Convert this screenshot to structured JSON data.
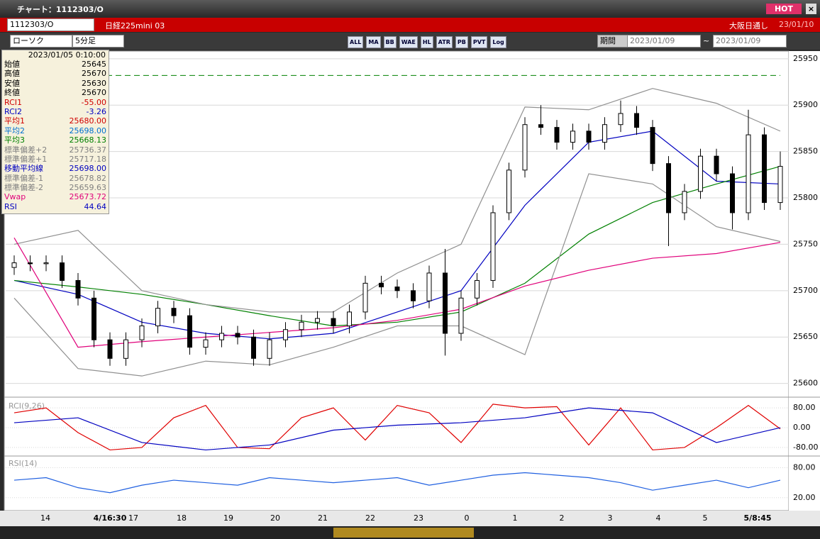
{
  "window": {
    "title": "チャート：1112303/O",
    "hot": "HOT"
  },
  "header": {
    "symbol": "1112303/O",
    "name": "日経225mini 03",
    "session": "大阪日通し",
    "date": "23/01/10"
  },
  "toolbar": {
    "chart_style": "ローソク",
    "interval": "5分足",
    "buttons": [
      "ALL",
      "MA",
      "BB",
      "WAE",
      "HL",
      "ATR",
      "PB",
      "PVT",
      "Log"
    ],
    "period_label": "期間",
    "from": "2023/01/09",
    "tilde": "~",
    "to": "2023/01/09"
  },
  "info_panel": {
    "datetime": "2023/01/05 0:10:00",
    "rows": [
      {
        "label": "始値",
        "value": "25645",
        "color": "#000000"
      },
      {
        "label": "高値",
        "value": "25670",
        "color": "#000000"
      },
      {
        "label": "安値",
        "value": "25630",
        "color": "#000000"
      },
      {
        "label": "終値",
        "value": "25670",
        "color": "#000000"
      },
      {
        "label": "RCI1",
        "value": "-55.00",
        "color": "#d00000"
      },
      {
        "label": "RCI2",
        "value": "-3.26",
        "color": "#0000c0"
      },
      {
        "label": "平均1",
        "value": "25680.00",
        "color": "#d00000"
      },
      {
        "label": "平均2",
        "value": "25698.00",
        "color": "#0070d0"
      },
      {
        "label": "平均3",
        "value": "25668.13",
        "color": "#008000"
      },
      {
        "label": "標準偏差+2",
        "value": "25736.37",
        "color": "#808080"
      },
      {
        "label": "標準偏差+1",
        "value": "25717.18",
        "color": "#808080"
      },
      {
        "label": "移動平均線",
        "value": "25698.00",
        "color": "#0000c0"
      },
      {
        "label": "標準偏差-1",
        "value": "25678.82",
        "color": "#808080"
      },
      {
        "label": "標準偏差-2",
        "value": "25659.63",
        "color": "#808080"
      },
      {
        "label": "Vwap",
        "value": "25673.72",
        "color": "#e0007a"
      },
      {
        "label": "RSI",
        "value": "44.64",
        "color": "#0000c0"
      }
    ]
  },
  "chart_data": [
    {
      "type": "candlestick",
      "ylim": [
        25589,
        25956
      ],
      "yticks": [
        25600,
        25650,
        25700,
        25750,
        25800,
        25850,
        25900,
        25950
      ],
      "grid": true,
      "up_color": "#ffffff",
      "down_color": "#000000",
      "reference_line": 25932,
      "reference_color": "#008000",
      "x_labels": [
        "14",
        "4/16:30",
        "17",
        "18",
        "19",
        "20",
        "21",
        "22",
        "23",
        "0",
        "1",
        "2",
        "3",
        "4",
        "5",
        "5/8:45"
      ],
      "open": [
        25725,
        25730,
        25729,
        25730,
        25711,
        25692,
        25647,
        25627,
        25647,
        25662,
        25681,
        25673,
        25639,
        25647,
        25654,
        25650,
        25627,
        25647,
        25658,
        25666,
        25670,
        25662,
        25677,
        25708,
        25704,
        25700,
        25689,
        25719,
        25654,
        25692,
        25711,
        25784,
        25830,
        25879,
        25876,
        25860,
        25872,
        25860,
        25879,
        25891,
        25876,
        25837,
        25784,
        25807,
        25845,
        25826,
        25784,
        25868,
        25795
      ],
      "high": [
        25738,
        25738,
        25738,
        25738,
        25719,
        25700,
        25655,
        25655,
        25670,
        25689,
        25689,
        25681,
        25655,
        25662,
        25662,
        25658,
        25655,
        25666,
        25674,
        25678,
        25678,
        25685,
        25716,
        25716,
        25712,
        25708,
        25727,
        25745,
        25700,
        25719,
        25792,
        25838,
        25887,
        25900,
        25884,
        25880,
        25880,
        25887,
        25905,
        25899,
        25884,
        25845,
        25815,
        25853,
        25853,
        25834,
        25895,
        25876,
        25850
      ],
      "low": [
        25717,
        25721,
        25721,
        25703,
        25684,
        25639,
        25619,
        25619,
        25639,
        25654,
        25665,
        25631,
        25631,
        25639,
        25642,
        25619,
        25619,
        25639,
        25650,
        25658,
        25654,
        25654,
        25669,
        25696,
        25692,
        25681,
        25681,
        25630,
        25646,
        25684,
        25703,
        25776,
        25822,
        25868,
        25852,
        25852,
        25852,
        25852,
        25871,
        25868,
        25829,
        25748,
        25776,
        25799,
        25818,
        25766,
        25776,
        25787,
        25787
      ],
      "close": [
        25730,
        25729,
        25730,
        25711,
        25692,
        25647,
        25627,
        25647,
        25662,
        25681,
        25673,
        25639,
        25647,
        25654,
        25650,
        25627,
        25647,
        25658,
        25666,
        25670,
        25662,
        25677,
        25708,
        25704,
        25700,
        25689,
        25719,
        25654,
        25692,
        25711,
        25784,
        25830,
        25879,
        25876,
        25860,
        25872,
        25860,
        25879,
        25891,
        25876,
        25837,
        25784,
        25807,
        25845,
        25826,
        25784,
        25868,
        25795,
        25834
      ],
      "series": [
        {
          "name": "平均2",
          "color": "#0000c0",
          "x": [
            0,
            4,
            8,
            12,
            16,
            20,
            24,
            28,
            32,
            36,
            40,
            44,
            48
          ],
          "values": [
            25711,
            25696,
            25666,
            25654,
            25648,
            25654,
            25677,
            25700,
            25792,
            25860,
            25872,
            25818,
            25815
          ]
        },
        {
          "name": "平均3",
          "color": "#008000",
          "x": [
            0,
            4,
            8,
            12,
            16,
            20,
            24,
            28,
            32,
            36,
            40,
            44,
            48
          ],
          "values": [
            25711,
            25704,
            25696,
            25685,
            25673,
            25662,
            25666,
            25677,
            25708,
            25761,
            25795,
            25815,
            25834
          ]
        },
        {
          "name": "標準偏差+2",
          "color": "#909090",
          "x": [
            0,
            4,
            8,
            12,
            16,
            20,
            24,
            28,
            32,
            36,
            40,
            44,
            48
          ],
          "values": [
            25750,
            25765,
            25700,
            25685,
            25677,
            25677,
            25719,
            25750,
            25898,
            25895,
            25918,
            25902,
            25872
          ]
        },
        {
          "name": "標準偏差-2",
          "color": "#909090",
          "x": [
            0,
            4,
            8,
            12,
            16,
            20,
            24,
            28,
            32,
            36,
            40,
            44,
            48
          ],
          "values": [
            25692,
            25616,
            25608,
            25624,
            25620,
            25639,
            25662,
            25662,
            25631,
            25826,
            25815,
            25769,
            25753
          ]
        },
        {
          "name": "Vwap",
          "color": "#e0007a",
          "x": [
            0,
            4,
            8,
            12,
            16,
            20,
            24,
            28,
            32,
            36,
            40,
            44,
            48
          ],
          "values": [
            25757,
            25639,
            25645,
            25650,
            25655,
            25660,
            25668,
            25680,
            25705,
            25722,
            25735,
            25740,
            25752
          ]
        }
      ]
    },
    {
      "type": "line",
      "title": "RCI(9,26)",
      "ylim": [
        -106,
        109
      ],
      "yticks": [
        {
          "value": 80,
          "label": "80.00"
        },
        {
          "value": 0,
          "label": "0.00"
        },
        {
          "value": -80,
          "label": "-80.00"
        }
      ],
      "series": [
        {
          "name": "RCI1",
          "color": "#e00000",
          "x": [
            0,
            2,
            4,
            6,
            8,
            10,
            12,
            14,
            16,
            18,
            20,
            22,
            24,
            26,
            28,
            30,
            32,
            34,
            36,
            38,
            40,
            42,
            44,
            46,
            48
          ],
          "values": [
            60,
            80,
            -20,
            -90,
            -80,
            40,
            90,
            -80,
            -85,
            40,
            80,
            -50,
            90,
            60,
            -60,
            95,
            80,
            85,
            -70,
            80,
            -90,
            -80,
            0,
            90,
            -5
          ]
        },
        {
          "name": "RCI2",
          "color": "#0000c0",
          "x": [
            0,
            4,
            8,
            12,
            16,
            20,
            24,
            28,
            32,
            36,
            40,
            44,
            48
          ],
          "values": [
            20,
            40,
            -60,
            -90,
            -70,
            -10,
            10,
            20,
            40,
            80,
            60,
            -60,
            0
          ]
        }
      ]
    },
    {
      "type": "line",
      "title": "RSI(14)",
      "ylim": [
        -3,
        99
      ],
      "yticks": [
        {
          "value": 80,
          "label": "80.00"
        },
        {
          "value": 20,
          "label": "20.00"
        }
      ],
      "series": [
        {
          "name": "RSI",
          "color": "#2060e0",
          "x": [
            0,
            2,
            4,
            6,
            8,
            10,
            12,
            14,
            16,
            18,
            20,
            22,
            24,
            26,
            28,
            30,
            32,
            34,
            36,
            38,
            40,
            42,
            44,
            46,
            48
          ],
          "values": [
            55,
            60,
            40,
            30,
            45,
            55,
            50,
            45,
            60,
            55,
            50,
            55,
            60,
            45,
            55,
            65,
            70,
            65,
            60,
            50,
            35,
            45,
            55,
            40,
            55
          ]
        }
      ]
    }
  ]
}
